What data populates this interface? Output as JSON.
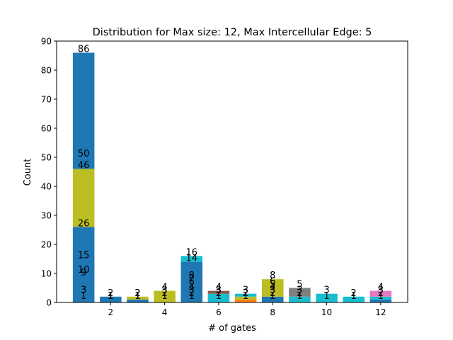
{
  "chart_data": {
    "type": "bar",
    "stacked": true,
    "title": "Distribution for Max size: 12, Max Intercellular Edge: 5",
    "xlabel": "# of gates",
    "ylabel": "Count",
    "xlim": [
      0,
      13
    ],
    "ylim": [
      0,
      90
    ],
    "xticks": [
      2,
      4,
      6,
      8,
      10,
      12
    ],
    "yticks": [
      0,
      10,
      20,
      30,
      40,
      50,
      60,
      70,
      80,
      90
    ],
    "grid": false,
    "bars": [
      {
        "x": 1,
        "segments": [
          {
            "bottom": 0,
            "top": 26,
            "color": "#1f77b4"
          },
          {
            "bottom": 26,
            "top": 46,
            "color": "#bcbd22"
          },
          {
            "bottom": 46,
            "top": 86,
            "color": "#1f77b4"
          }
        ],
        "labels": [
          {
            "y": 1,
            "text": "1"
          },
          {
            "y": 3,
            "text": "3"
          },
          {
            "y": 9,
            "text": "9"
          },
          {
            "y": 10,
            "text": "10"
          },
          {
            "y": 15,
            "text": "15"
          },
          {
            "y": 26,
            "text": "26"
          },
          {
            "y": 46,
            "text": "46"
          },
          {
            "y": 50,
            "text": "50"
          },
          {
            "y": 86,
            "text": "86"
          }
        ]
      },
      {
        "x": 2,
        "segments": [
          {
            "bottom": 0,
            "top": 2,
            "color": "#1f77b4"
          }
        ],
        "labels": [
          {
            "y": 1,
            "text": "1"
          },
          {
            "y": 1,
            "text": "1"
          },
          {
            "y": 2,
            "text": "2"
          }
        ]
      },
      {
        "x": 3,
        "segments": [
          {
            "bottom": 0,
            "top": 1,
            "color": "#1f77b4"
          },
          {
            "bottom": 1,
            "top": 2,
            "color": "#bcbd22"
          }
        ],
        "labels": [
          {
            "y": 1,
            "text": "1"
          },
          {
            "y": 1,
            "text": "1"
          },
          {
            "y": 2,
            "text": "2"
          },
          {
            "y": 2,
            "text": "2"
          }
        ]
      },
      {
        "x": 4,
        "segments": [
          {
            "bottom": 0,
            "top": 4,
            "color": "#bcbd22"
          }
        ],
        "labels": [
          {
            "y": 1,
            "text": "1"
          },
          {
            "y": 2,
            "text": "2"
          },
          {
            "y": 3,
            "text": "3"
          },
          {
            "y": 4,
            "text": "4"
          }
        ]
      },
      {
        "x": 5,
        "segments": [
          {
            "bottom": 0,
            "top": 14,
            "color": "#1f77b4"
          },
          {
            "bottom": 14,
            "top": 16,
            "color": "#17becf"
          }
        ],
        "labels": [
          {
            "y": 1,
            "text": "1"
          },
          {
            "y": 2,
            "text": "2"
          },
          {
            "y": 3,
            "text": "3"
          },
          {
            "y": 4,
            "text": "4"
          },
          {
            "y": 6,
            "text": "6"
          },
          {
            "y": 7,
            "text": "7"
          },
          {
            "y": 8,
            "text": "8"
          },
          {
            "y": 14,
            "text": "14"
          },
          {
            "y": 16,
            "text": "16"
          }
        ]
      },
      {
        "x": 6,
        "segments": [
          {
            "bottom": 0,
            "top": 3,
            "color": "#17becf"
          },
          {
            "bottom": 3,
            "top": 4,
            "color": "#8c564b"
          }
        ],
        "labels": [
          {
            "y": 1,
            "text": "1"
          },
          {
            "y": 2,
            "text": "2"
          },
          {
            "y": 3,
            "text": "3"
          },
          {
            "y": 4,
            "text": "4"
          }
        ]
      },
      {
        "x": 7,
        "segments": [
          {
            "bottom": 0,
            "top": 1,
            "color": "#ff7f0e"
          },
          {
            "bottom": 1,
            "top": 2,
            "color": "#bcbd22"
          },
          {
            "bottom": 2,
            "top": 3,
            "color": "#17becf"
          }
        ],
        "labels": [
          {
            "y": 1,
            "text": "1"
          },
          {
            "y": 2,
            "text": "2"
          },
          {
            "y": 2,
            "text": "2"
          },
          {
            "y": 3,
            "text": "3"
          }
        ]
      },
      {
        "x": 8,
        "segments": [
          {
            "bottom": 0,
            "top": 2,
            "color": "#1f77b4"
          },
          {
            "bottom": 2,
            "top": 8,
            "color": "#bcbd22"
          }
        ],
        "labels": [
          {
            "y": 1,
            "text": "1"
          },
          {
            "y": 2,
            "text": "2"
          },
          {
            "y": 3,
            "text": "3"
          },
          {
            "y": 4,
            "text": "4"
          },
          {
            "y": 5,
            "text": "5"
          },
          {
            "y": 6,
            "text": "6"
          },
          {
            "y": 8,
            "text": "8"
          }
        ]
      },
      {
        "x": 9,
        "segments": [
          {
            "bottom": 0,
            "top": 2,
            "color": "#17becf"
          },
          {
            "bottom": 2,
            "top": 5,
            "color": "#7f7f7f"
          }
        ],
        "labels": [
          {
            "y": 1,
            "text": "1"
          },
          {
            "y": 2,
            "text": "2"
          },
          {
            "y": 3,
            "text": "3"
          },
          {
            "y": 5,
            "text": "5"
          }
        ]
      },
      {
        "x": 10,
        "segments": [
          {
            "bottom": 0,
            "top": 3,
            "color": "#17becf"
          }
        ],
        "labels": [
          {
            "y": 1,
            "text": "1"
          },
          {
            "y": 3,
            "text": "3"
          }
        ]
      },
      {
        "x": 11,
        "segments": [
          {
            "bottom": 0,
            "top": 2,
            "color": "#17becf"
          }
        ],
        "labels": [
          {
            "y": 1,
            "text": "1"
          },
          {
            "y": 2,
            "text": "2"
          }
        ]
      },
      {
        "x": 12,
        "segments": [
          {
            "bottom": 0,
            "top": 1,
            "color": "#1f77b4"
          },
          {
            "bottom": 1,
            "top": 2,
            "color": "#17becf"
          },
          {
            "bottom": 2,
            "top": 4,
            "color": "#e377c2"
          }
        ],
        "labels": [
          {
            "y": 1,
            "text": "1"
          },
          {
            "y": 2,
            "text": "2"
          },
          {
            "y": 3,
            "text": "3"
          },
          {
            "y": 4,
            "text": "4"
          }
        ]
      }
    ]
  }
}
